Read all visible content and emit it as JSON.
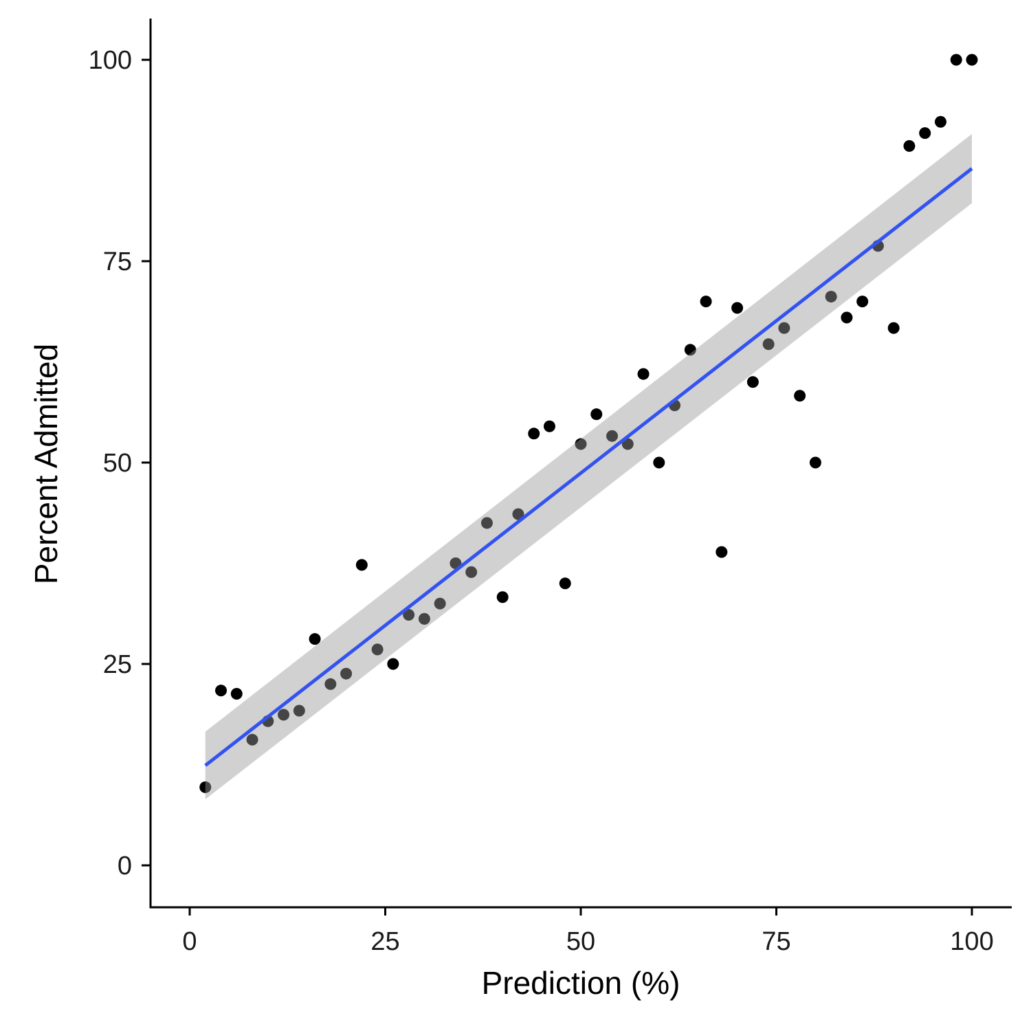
{
  "colors": {
    "point": "#000000",
    "fit_line": "#3353f0",
    "confidence_band": "#999999",
    "axis": "#000000",
    "background": "#ffffff"
  },
  "chart_data": {
    "type": "scatter",
    "title": "",
    "xlabel": "Prediction (%)",
    "ylabel": "Percent Admitted",
    "xlim": [
      -5,
      105
    ],
    "ylim": [
      -5,
      105
    ],
    "x_ticks": [
      0,
      25,
      50,
      75,
      100
    ],
    "y_ticks": [
      0,
      25,
      50,
      75,
      100
    ],
    "grid": false,
    "legend": "none",
    "series": [
      {
        "x": [
          2,
          4,
          6,
          8,
          10,
          12,
          14,
          16,
          18,
          20,
          22,
          24,
          26,
          28,
          30,
          32,
          34,
          36,
          38,
          40,
          42,
          44,
          46,
          48,
          50,
          52,
          54,
          56,
          58,
          60,
          62,
          64,
          66,
          68,
          70,
          72,
          74,
          76,
          78,
          80,
          82,
          84,
          86,
          88,
          90,
          92,
          94,
          96,
          98,
          100
        ],
        "y": [
          9.7,
          21.7,
          21.3,
          15.6,
          17.9,
          18.7,
          19.2,
          28.1,
          22.5,
          23.8,
          37.3,
          26.8,
          25.0,
          31.1,
          30.6,
          32.5,
          37.5,
          36.4,
          42.5,
          33.3,
          43.6,
          53.6,
          54.5,
          35.0,
          52.3,
          56.0,
          53.3,
          52.3,
          61.0,
          50.0,
          57.1,
          64.0,
          70.0,
          38.9,
          69.2,
          60.0,
          64.7,
          66.7,
          58.3,
          50.0,
          70.6,
          68.0,
          70.0,
          76.9,
          66.7,
          89.3,
          90.9,
          92.3,
          100.0,
          100.0
        ]
      }
    ],
    "fit": {
      "method": "linear",
      "x_range": [
        2,
        100
      ],
      "y_line": [
        12.4,
        86.5
      ],
      "ci_lower": [
        8.2,
        82.2
      ],
      "ci_upper": [
        16.6,
        90.8
      ]
    }
  }
}
